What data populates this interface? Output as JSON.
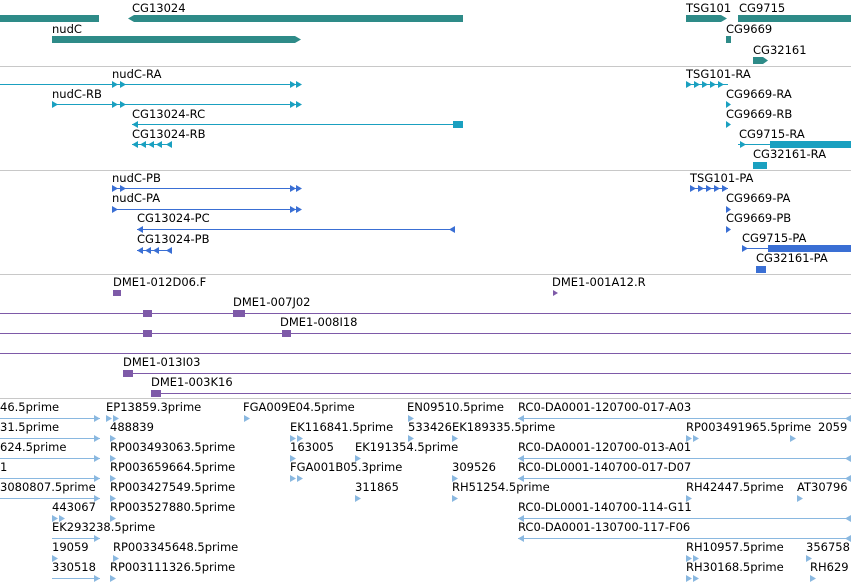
{
  "colors": {
    "gene": "#2e8b88",
    "transcript_ensembl": "#1aa0c0",
    "transcript_flybase": "#3a6fd4",
    "clone": "#7e5aa8",
    "est": "#8ab8e0",
    "divider": "#c8c8c8"
  },
  "tracks": {
    "genes": {
      "labels": [
        "CG13024",
        "nudC",
        "TSG101",
        "CG9715",
        "CG9669",
        "CG32161"
      ]
    },
    "transcripts_a": {
      "labels": [
        "nudC-RA",
        "nudC-RB",
        "CG13024-RC",
        "CG13024-RB",
        "TSG101-RA",
        "CG9669-RA",
        "CG9669-RB",
        "CG9715-RA",
        "CG32161-RA"
      ]
    },
    "transcripts_b": {
      "labels": [
        "nudC-PB",
        "nudC-PA",
        "CG13024-PC",
        "CG13024-PB",
        "TSG101-PA",
        "CG9669-PA",
        "CG9669-PB",
        "CG9715-PA",
        "CG32161-PA"
      ]
    },
    "clones": {
      "labels": [
        "DME1-012D06.F",
        "DME1-001A12.R",
        "DME1-007J02",
        "DME1-008I18",
        "DME1-013I03",
        "DME1-003K16"
      ]
    },
    "ests": {
      "labels": [
        "46.5prime",
        "EP13859.3prime",
        "FGA009E04.5prime",
        "EN09510.5prime",
        "RC0-DA0001-120700-017-A03",
        "31.5prime",
        "488839",
        "EK116841.5prime",
        "533426",
        "EK189335.5prime",
        "RP003491965.5prime",
        "2059",
        "624.5prime",
        "RP003493063.5prime",
        "163005",
        "EK191354.5prime",
        "RC0-DA0001-120700-013-A01",
        "1",
        "RP003659664.5prime",
        "FGA001B05.3prime",
        "309526",
        "RC0-DL0001-140700-017-D07",
        "3080807.5prime",
        "RP003427549.5prime",
        "311865",
        "RH51254.5prime",
        "RH42447.5prime",
        "AT30796",
        "443067",
        "RP003527880.5prime",
        "RC0-DL0001-140700-114-G11",
        "EK293238.5prime",
        "RC0-DA0001-130700-117-F06",
        "19059",
        "RP003345648.5prime",
        "RH10957.5prime",
        "356758",
        "330518",
        "RP003111326.5prime",
        "RH30168.5prime",
        "RH629"
      ]
    }
  }
}
